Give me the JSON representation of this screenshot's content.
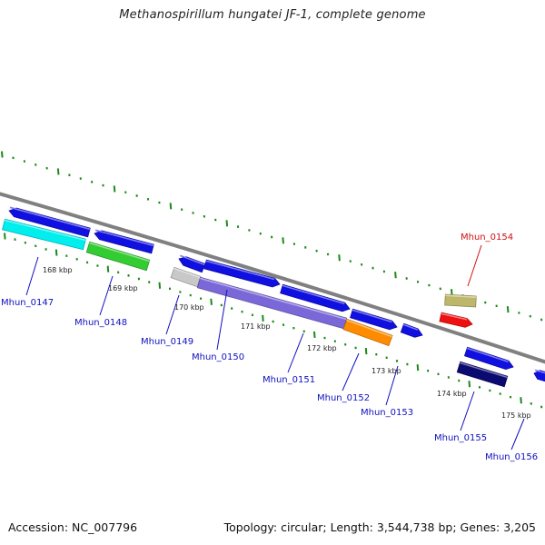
{
  "title": "Methanospirillum hungatei JF-1, complete genome",
  "footer": {
    "accession": "Accession: NC_007796",
    "summary": "Topology: circular; Length: 3,544,738 bp; Genes: 3,205"
  },
  "colors": {
    "backbone": "#808080",
    "tick": "#1a8a1a",
    "label_default": "#1010c0",
    "label_highlight": "#d01010"
  },
  "scale_labels": [
    "168 kbp",
    "169 kbp",
    "170 kbp",
    "171 kbp",
    "172 kbp",
    "173 kbp",
    "174 kbp",
    "175 kbp"
  ],
  "gene_labels": [
    {
      "text": "Mhun_0147",
      "highlight": false
    },
    {
      "text": "Mhun_0148",
      "highlight": false
    },
    {
      "text": "Mhun_0149",
      "highlight": false
    },
    {
      "text": "Mhun_0150",
      "highlight": false
    },
    {
      "text": "Mhun_0151",
      "highlight": false
    },
    {
      "text": "Mhun_0152",
      "highlight": false
    },
    {
      "text": "Mhun_0153",
      "highlight": false
    },
    {
      "text": "Mhun_0154",
      "highlight": true
    },
    {
      "text": "Mhun_0155",
      "highlight": false
    },
    {
      "text": "Mhun_0156",
      "highlight": false
    }
  ],
  "features": [
    {
      "name": "gene-upper-1",
      "color": "#1010e0"
    },
    {
      "name": "cds-cyan",
      "color": "#00eeee"
    },
    {
      "name": "gene-upper-2",
      "color": "#1010e0"
    },
    {
      "name": "cds-green",
      "color": "#33cc33"
    },
    {
      "name": "gene-upper-3",
      "color": "#1010e0"
    },
    {
      "name": "cds-gray",
      "color": "#c8c8c8"
    },
    {
      "name": "gene-upper-4",
      "color": "#1010e0"
    },
    {
      "name": "cds-slateblue",
      "color": "#7b68d8"
    },
    {
      "name": "gene-upper-5",
      "color": "#1010e0"
    },
    {
      "name": "gene-upper-6",
      "color": "#1010e0"
    },
    {
      "name": "cds-orange",
      "color": "#ff8c00"
    },
    {
      "name": "gene-upper-7",
      "color": "#1010e0"
    },
    {
      "name": "cds-khaki",
      "color": "#bdb76b"
    },
    {
      "name": "cds-red",
      "color": "#ee1111"
    },
    {
      "name": "gene-upper-8",
      "color": "#1010e0"
    },
    {
      "name": "cds-navy",
      "color": "#0a0a70"
    },
    {
      "name": "gene-upper-9",
      "color": "#1010e0"
    }
  ]
}
